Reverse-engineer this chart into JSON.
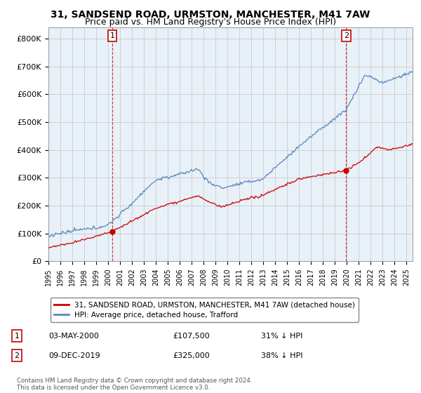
{
  "title": "31, SANDSEND ROAD, URMSTON, MANCHESTER, M41 7AW",
  "subtitle": "Price paid vs. HM Land Registry's House Price Index (HPI)",
  "title_fontsize": 10,
  "subtitle_fontsize": 9,
  "ylabel_ticks": [
    "£0",
    "£100K",
    "£200K",
    "£300K",
    "£400K",
    "£500K",
    "£600K",
    "£700K",
    "£800K"
  ],
  "ytick_values": [
    0,
    100000,
    200000,
    300000,
    400000,
    500000,
    600000,
    700000,
    800000
  ],
  "ylim": [
    0,
    840000
  ],
  "xlim_start": 1995.0,
  "xlim_end": 2025.5,
  "legend_line1": "31, SANDSEND ROAD, URMSTON, MANCHESTER, M41 7AW (detached house)",
  "legend_line2": "HPI: Average price, detached house, Trafford",
  "sale1_date": "03-MAY-2000",
  "sale1_price": "£107,500",
  "sale1_hpi": "31% ↓ HPI",
  "sale1_x": 2000.35,
  "sale1_y": 107500,
  "sale2_date": "09-DEC-2019",
  "sale2_price": "£325,000",
  "sale2_hpi": "38% ↓ HPI",
  "sale2_x": 2019.93,
  "sale2_y": 325000,
  "footnote": "Contains HM Land Registry data © Crown copyright and database right 2024.\nThis data is licensed under the Open Government Licence v3.0.",
  "line_color_red": "#cc0000",
  "line_color_blue": "#5588bb",
  "chart_bg_color": "#e8f0f8",
  "bg_color": "#ffffff",
  "grid_color": "#cccccc",
  "annotation_box_color": "#cc0000"
}
